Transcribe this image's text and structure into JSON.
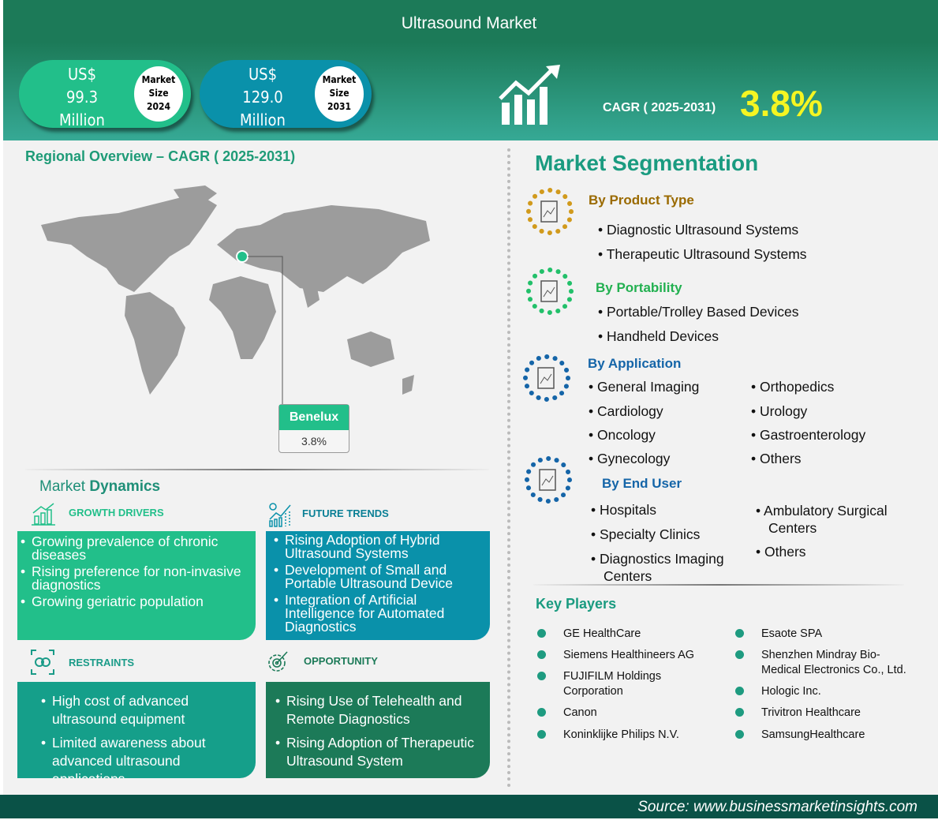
{
  "title": "Ultrasound Market",
  "market_size_2024": {
    "currency": "US$",
    "value": "99.3",
    "unit": "Million",
    "label1": "Market",
    "label2": "Size",
    "year": "2024",
    "color": "#22bf8a"
  },
  "market_size_2031": {
    "currency": "US$",
    "value": "129.0",
    "unit": "Million",
    "label1": "Market",
    "label2": "Size",
    "year": "2031",
    "color": "#0a91aa"
  },
  "cagr": {
    "label": "CAGR ( 2025-2031)",
    "value": "3.8%"
  },
  "regional": {
    "title": "Regional Overview – CAGR ( 2025-2031)",
    "region": "Benelux",
    "value": "3.8%"
  },
  "dynamics": {
    "title_a": "Market ",
    "title_b": "Dynamics",
    "growth_drivers": {
      "title": "GROWTH DRIVERS",
      "items": [
        "Growing prevalence of chronic diseases",
        "Rising preference for non-invasive diagnostics",
        "Growing geriatric population"
      ]
    },
    "future_trends": {
      "title": "FUTURE TRENDS",
      "items": [
        "Rising Adoption of Hybrid Ultrasound Systems",
        "Development of Small and Portable Ultrasound Device",
        "Integration of Artificial Intelligence for Automated Diagnostics"
      ]
    },
    "restraints": {
      "title": "RESTRAINTS",
      "items": [
        "High cost of advanced ultrasound equipment",
        "Limited awareness about advanced ultrasound applications"
      ]
    },
    "opportunity": {
      "title": "OPPORTUNITY",
      "items": [
        "Rising Use of Telehealth and Remote Diagnostics",
        "Rising Adoption of Therapeutic Ultrasound System"
      ]
    }
  },
  "segmentation": {
    "title": "Market Segmentation",
    "product_type": {
      "title": "By Product Type",
      "items": [
        "Diagnostic Ultrasound Systems",
        "Therapeutic Ultrasound Systems"
      ]
    },
    "portability": {
      "title": "By Portability",
      "items": [
        "Portable/Trolley Based Devices",
        "Handheld Devices"
      ]
    },
    "application": {
      "title": "By Application",
      "items": [
        "General Imaging",
        "Cardiology",
        "Oncology",
        "Gynecology",
        "Orthopedics",
        "Urology",
        "Gastroenterology",
        "Others"
      ]
    },
    "end_user": {
      "title": "By End User",
      "items": [
        "Hospitals",
        "Specialty Clinics",
        "Diagnostics Imaging Centers",
        "Ambulatory Surgical Centers",
        "Others"
      ]
    }
  },
  "key_players": {
    "title": "Key Players",
    "items": [
      "GE HealthCare",
      "Siemens Healthineers AG",
      "FUJIFILM Holdings Corporation",
      "Canon",
      "Koninklijke Philips N.V.",
      "Esaote SPA",
      "Shenzhen Mindray Bio-Medical Electronics Co., Ltd.",
      "Hologic Inc.",
      "Trivitron Healthcare",
      "SamsungHealthcare"
    ]
  },
  "source": "Source:  www.businessmarketinsights.com"
}
